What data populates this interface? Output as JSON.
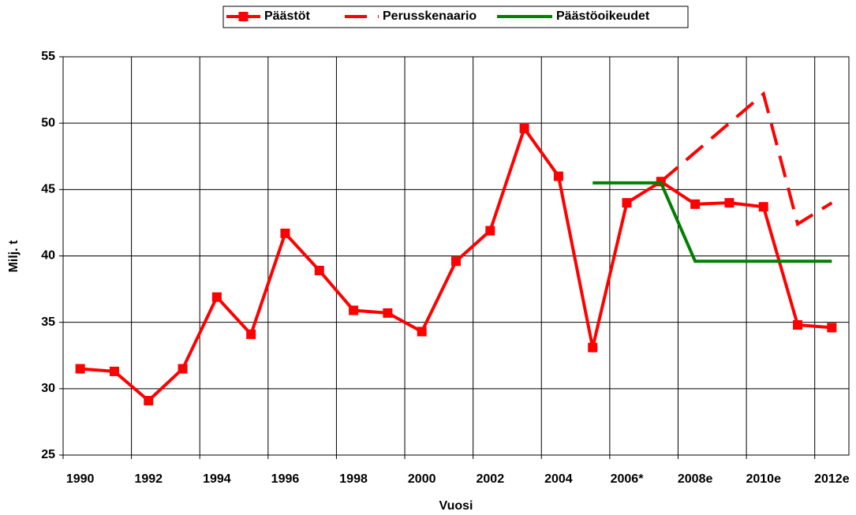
{
  "chart_data": {
    "type": "line",
    "x_label": "Vuosi",
    "y_label": "Milj. t",
    "categories": [
      "1990",
      null,
      "1992",
      null,
      "1994",
      null,
      "1996",
      null,
      "1998",
      null,
      "2000",
      null,
      "2002",
      null,
      "2004",
      null,
      "2006*",
      null,
      "2008e",
      null,
      "2010e",
      null,
      "2012e"
    ],
    "series": [
      {
        "name": "Päästöt",
        "color": "#ff0000",
        "style": "solid",
        "marker": "square",
        "values": [
          31.5,
          31.3,
          29.1,
          31.5,
          36.9,
          34.1,
          41.7,
          38.9,
          35.9,
          35.7,
          34.3,
          39.6,
          41.9,
          49.6,
          46.0,
          33.1,
          44.0,
          45.6,
          43.9,
          44.0,
          43.7,
          34.8,
          34.6
        ]
      },
      {
        "name": "Perusskenaario",
        "color": "#ff0000",
        "style": "dashed",
        "values": [
          null,
          null,
          null,
          null,
          null,
          null,
          null,
          null,
          null,
          null,
          null,
          null,
          null,
          null,
          null,
          null,
          null,
          45.6,
          47.8,
          50.0,
          52.2,
          42.4,
          44.0
        ]
      },
      {
        "name": "Päästöoikeudet",
        "color": "#008000",
        "style": "solid",
        "values": [
          null,
          null,
          null,
          null,
          null,
          null,
          null,
          null,
          null,
          null,
          null,
          null,
          null,
          null,
          null,
          45.5,
          45.5,
          45.5,
          39.6,
          39.6,
          39.6,
          39.6,
          39.6
        ]
      }
    ],
    "ylim": [
      25,
      55
    ],
    "yticks": [
      25,
      30,
      35,
      40,
      45,
      50,
      55
    ],
    "grid": true,
    "legend": "top"
  }
}
